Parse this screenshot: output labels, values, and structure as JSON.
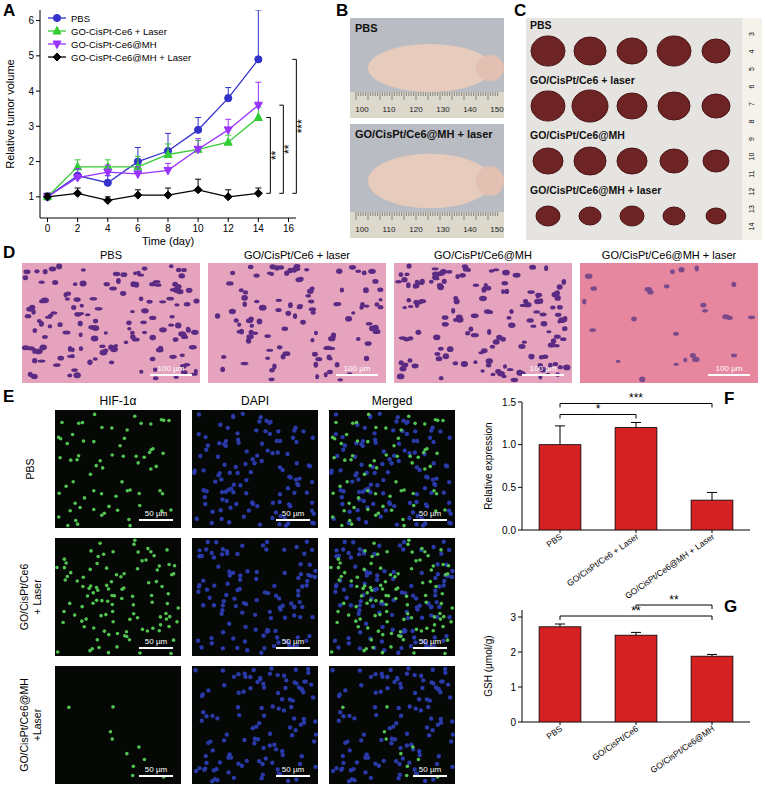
{
  "chart_data": [
    {
      "type": "line",
      "panel_label": "A",
      "x_label": "Time (day)",
      "y_label": "Relative tumor volume",
      "x": [
        0,
        2,
        4,
        6,
        8,
        10,
        12,
        14
      ],
      "xlim": [
        -0.5,
        16.5
      ],
      "xticks": [
        0,
        2,
        4,
        6,
        8,
        10,
        12,
        14,
        16
      ],
      "ylim": [
        0.4,
        6.3
      ],
      "yticks": [
        1,
        2,
        3,
        4,
        5,
        6
      ],
      "legend": "upper left",
      "series": [
        {
          "name": "PBS",
          "color": "#3333cc",
          "marker": "circle",
          "values": [
            1.0,
            1.6,
            1.4,
            2.0,
            2.3,
            2.9,
            3.8,
            4.9
          ],
          "errors": [
            0.1,
            0.2,
            0.2,
            0.4,
            0.5,
            0.35,
            0.3,
            1.4
          ]
        },
        {
          "name": "GO-CisPt-Ce6 + Laser",
          "color": "#33cc33",
          "marker": "triangle",
          "values": [
            1.0,
            1.85,
            1.85,
            1.85,
            2.2,
            2.35,
            2.55,
            3.25
          ],
          "errors": [
            0.1,
            0.2,
            0.2,
            0.3,
            0.3,
            0.25,
            0.2,
            0.3
          ]
        },
        {
          "name": "GO-CisPt-Ce6@MH",
          "color": "#9933ff",
          "marker": "triangle-down",
          "values": [
            1.0,
            1.55,
            1.7,
            1.65,
            1.75,
            2.35,
            2.9,
            3.6
          ],
          "errors": [
            0.1,
            0.25,
            0.2,
            0.2,
            0.2,
            0.3,
            0.3,
            0.65
          ]
        },
        {
          "name": "GO-CisPt-Ce6@MH + Laser",
          "color": "#000000",
          "marker": "diamond",
          "values": [
            1.0,
            1.1,
            0.9,
            1.05,
            1.05,
            1.2,
            1.0,
            1.1
          ],
          "errors": [
            0.1,
            0.15,
            0.1,
            0.15,
            0.2,
            0.3,
            0.2,
            0.15
          ]
        }
      ],
      "annotations": [
        {
          "text": "**",
          "from": "GO-CisPt-Ce6@MH + Laser",
          "to": "GO-CisPt-Ce6 + Laser"
        },
        {
          "text": "**",
          "from": "GO-CisPt-Ce6@MH + Laser",
          "to": "GO-CisPt-Ce6@MH"
        },
        {
          "text": "***",
          "from": "GO-CisPt-Ce6@MH + Laser",
          "to": "PBS"
        }
      ]
    },
    {
      "type": "bar",
      "panel_label": "F",
      "y_label": "Relative expression",
      "categories": [
        "PBS",
        "GO/CisPt/Ce6 + Laser",
        "GO/CisPt/Ce6@MH + Laser"
      ],
      "values": [
        1.0,
        1.2,
        0.35
      ],
      "errors": [
        0.22,
        0.06,
        0.09
      ],
      "color": "#d42222",
      "ylim": [
        0,
        1.5
      ],
      "yticks": [
        {
          "value": 0,
          "label": "0.0"
        },
        {
          "value": 0.5,
          "label": "0.5"
        },
        {
          "value": 1,
          "label": "1.0"
        },
        {
          "value": 1.5,
          "label": "1.5"
        }
      ],
      "significance": [
        {
          "text": "*",
          "between": [
            "PBS",
            "GO/CisPt/Ce6 + Laser"
          ]
        },
        {
          "text": "***",
          "between": [
            "PBS",
            "GO/CisPt/Ce6@MH + Laser"
          ]
        }
      ]
    },
    {
      "type": "bar",
      "panel_label": "G",
      "y_label": "GSH (μmol/g)",
      "categories": [
        "PBS",
        "GO/CisPt/Ce6",
        "GO/CisPt/Ce6@MH"
      ],
      "values": [
        2.72,
        2.48,
        1.88
      ],
      "errors": [
        0.08,
        0.08,
        0.05
      ],
      "color": "#d42222",
      "ylim": [
        0,
        3.2
      ],
      "yticks": [
        0,
        1,
        2,
        3
      ],
      "significance": [
        {
          "text": "**",
          "between": [
            "PBS",
            "GO/CisPt/Ce6@MH"
          ]
        },
        {
          "text": "**",
          "between": [
            "GO/CisPt/Ce6",
            "GO/CisPt/Ce6@MH"
          ]
        }
      ]
    }
  ],
  "panels": {
    "B": {
      "label": "B",
      "captions": [
        "PBS",
        "GO/CisPt/Ce6@MH + laser"
      ],
      "ruler": [
        100,
        110,
        120,
        130,
        140,
        150
      ]
    },
    "C": {
      "label": "C",
      "captions": [
        "PBS",
        "GO/CisPt/Ce6 + laser",
        "GO/CisPt/Ce6@MH",
        "GO/CisPt/Ce6@MH + laser"
      ],
      "ruler": [
        3,
        4,
        5,
        6,
        7,
        8,
        9,
        10,
        11,
        12,
        13,
        14
      ]
    },
    "D": {
      "label": "D",
      "titles": [
        "PBS",
        "GO/CisPt/Ce6 + laser",
        "GO/CisPt/Ce6@MH",
        "GO/CisPt/Ce6@MH + laser"
      ],
      "scale_bar": "100 µm"
    },
    "E": {
      "label": "E",
      "columns": [
        "HIF-1α",
        "DAPI",
        "Merged"
      ],
      "rows": [
        [
          "PBS"
        ],
        [
          "GO/CisPt/Ce6",
          "+ Laser"
        ],
        [
          "GO/CisPt/Ce6@MH",
          "+Laser"
        ]
      ],
      "scale_bar": "50 µm"
    }
  }
}
